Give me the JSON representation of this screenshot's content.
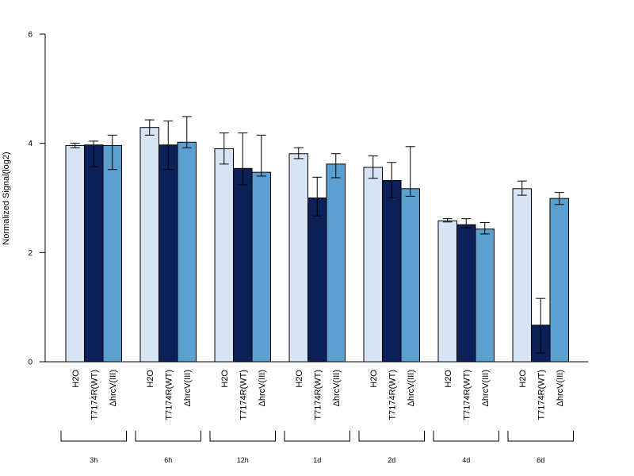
{
  "chart_data": {
    "type": "bar",
    "ylabel": "Normalized Signal(log2)",
    "ylim": [
      0,
      6
    ],
    "yticks": [
      "0",
      "2",
      "4",
      "6"
    ],
    "groups": [
      "3h",
      "6h",
      "12h",
      "1d",
      "2d",
      "4d",
      "6d"
    ],
    "treatments": [
      "H2O",
      "T7174R(WT)",
      "ΔhrcV(III)"
    ],
    "colors": [
      "#d6e4f4",
      "#0b2158",
      "#5b9fcf"
    ],
    "series": [
      {
        "values": [
          3.96,
          4.29,
          3.9,
          3.81,
          3.56,
          2.58,
          3.17
        ],
        "err_low": [
          3.92,
          4.15,
          3.62,
          3.72,
          3.36,
          2.56,
          3.05
        ],
        "err_high": [
          4.0,
          4.43,
          4.19,
          3.92,
          3.77,
          2.62,
          3.31
        ]
      },
      {
        "values": [
          3.97,
          3.97,
          3.54,
          3.0,
          3.32,
          2.51,
          0.67
        ],
        "err_low": [
          3.57,
          3.52,
          3.24,
          2.67,
          3.0,
          2.45,
          0.16
        ],
        "err_high": [
          4.04,
          4.41,
          4.19,
          3.38,
          3.65,
          2.62,
          1.16
        ]
      },
      {
        "values": [
          3.96,
          4.02,
          3.47,
          3.62,
          3.17,
          2.43,
          2.99
        ],
        "err_low": [
          3.52,
          3.92,
          3.4,
          3.37,
          3.03,
          2.34,
          2.88
        ],
        "err_high": [
          4.15,
          4.49,
          4.15,
          3.81,
          3.94,
          2.55,
          3.1
        ]
      }
    ]
  }
}
